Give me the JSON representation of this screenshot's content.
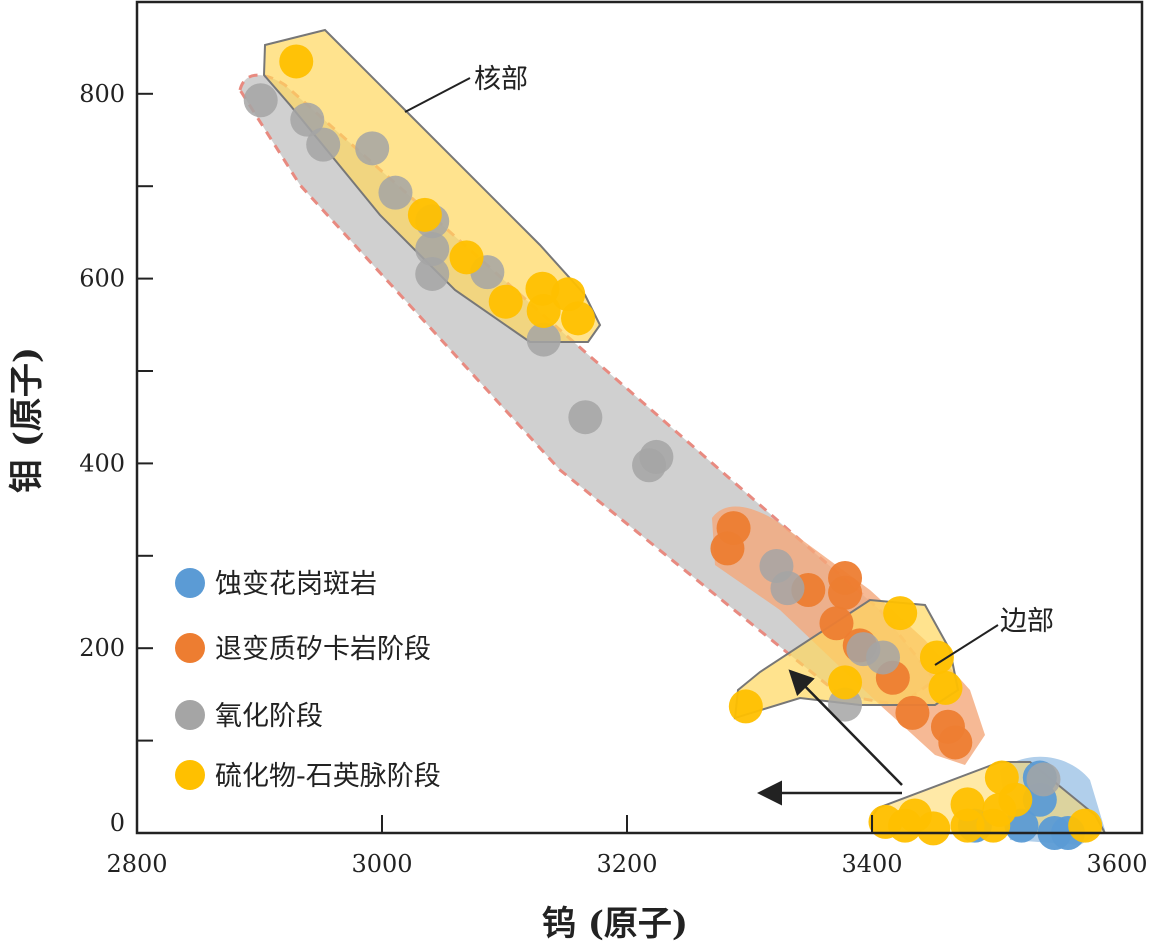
{
  "chart_data": {
    "type": "scatter",
    "title": "",
    "xlabel": "钨 (原子)",
    "ylabel": "钼 (原子)",
    "xlim": [
      2800,
      3620
    ],
    "ylim": [
      0,
      900
    ],
    "xticks": [
      2800,
      3000,
      3200,
      3400,
      3600
    ],
    "yticks": [
      0,
      200,
      400,
      600,
      800
    ],
    "grid": false,
    "legend_position": "bottom-left",
    "series": [
      {
        "name": "蚀变花岗斑岩",
        "color": "#5b9bd5",
        "points": [
          [
            3537,
            60
          ],
          [
            3522,
            8
          ],
          [
            3549,
            0
          ],
          [
            3560,
            0
          ],
          [
            3484,
            8
          ],
          [
            3537,
            36
          ]
        ]
      },
      {
        "name": "退变质矽卡岩阶段",
        "color": "#ed7d31",
        "points": [
          [
            3287,
            330
          ],
          [
            3282,
            308
          ],
          [
            3348,
            263
          ],
          [
            3378,
            276
          ],
          [
            3378,
            260
          ],
          [
            3371,
            227
          ],
          [
            3390,
            203
          ],
          [
            3417,
            168
          ],
          [
            3433,
            130
          ],
          [
            3462,
            115
          ],
          [
            3468,
            98
          ]
        ]
      },
      {
        "name": "氧化阶段",
        "color": "#a5a5a5",
        "points": [
          [
            2901,
            793
          ],
          [
            2939,
            772
          ],
          [
            2952,
            745
          ],
          [
            2992,
            741
          ],
          [
            3011,
            693
          ],
          [
            3041,
            662
          ],
          [
            3041,
            632
          ],
          [
            3041,
            605
          ],
          [
            3086,
            607
          ],
          [
            3132,
            534
          ],
          [
            3166,
            450
          ],
          [
            3218,
            398
          ],
          [
            3224,
            407
          ],
          [
            3322,
            289
          ],
          [
            3331,
            265
          ],
          [
            3378,
            139
          ],
          [
            3393,
            199
          ],
          [
            3409,
            190
          ],
          [
            3540,
            58
          ]
        ]
      },
      {
        "name": "硫化物-石英脉阶段",
        "color": "#ffc000",
        "points": [
          [
            2930,
            835
          ],
          [
            3035,
            669
          ],
          [
            3069,
            623
          ],
          [
            3101,
            575
          ],
          [
            3131,
            589
          ],
          [
            3152,
            583
          ],
          [
            3160,
            557
          ],
          [
            3132,
            565
          ],
          [
            3297,
            137
          ],
          [
            3378,
            163
          ],
          [
            3423,
            238
          ],
          [
            3453,
            190
          ],
          [
            3460,
            157
          ],
          [
            3411,
            12
          ],
          [
            3427,
            8
          ],
          [
            3435,
            19
          ],
          [
            3450,
            5
          ],
          [
            3478,
            31
          ],
          [
            3478,
            8
          ],
          [
            3499,
            8
          ],
          [
            3506,
            60
          ],
          [
            3517,
            36
          ],
          [
            3504,
            25
          ],
          [
            3574,
            8
          ]
        ]
      }
    ],
    "annotations": [
      {
        "text": "核部"
      },
      {
        "text": "边部"
      }
    ]
  }
}
